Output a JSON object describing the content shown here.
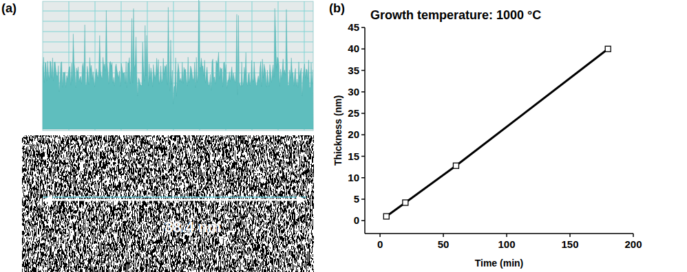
{
  "panels": {
    "a": {
      "letter": "(a)",
      "scale_label": "38.4 nm"
    },
    "b": {
      "letter": "(b)"
    }
  },
  "chart_data": {
    "type": "line",
    "annotation": "Growth temperature: 1000 °C",
    "x_label": "Time (min)",
    "y_label": "Thickness (nm)",
    "x": [
      5,
      20,
      60,
      180
    ],
    "values": [
      1,
      4.2,
      12.8,
      40
    ],
    "color": "#000000",
    "marker": "square",
    "line_style": "solid",
    "xlim": [
      -12,
      200
    ],
    "xticks": [
      0,
      50,
      100,
      150,
      200
    ],
    "ylim": [
      -3,
      45
    ],
    "yticks": [
      0,
      5,
      10,
      15,
      20,
      25,
      30,
      35,
      40,
      45
    ],
    "grid": false
  }
}
